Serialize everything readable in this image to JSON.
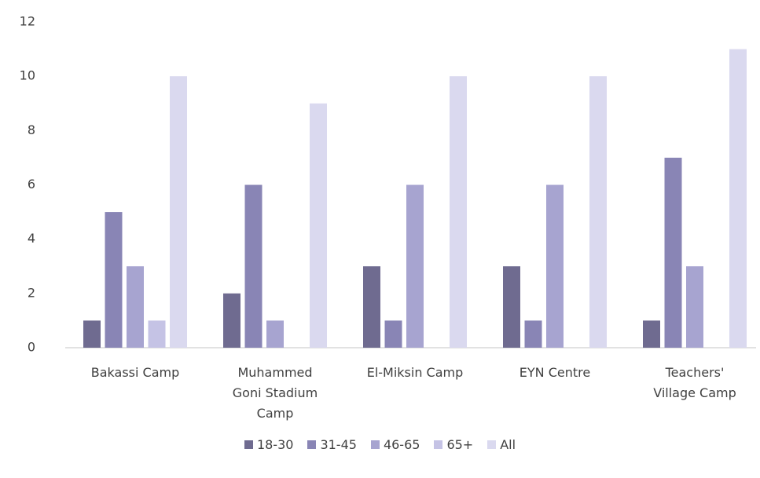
{
  "chart_data": {
    "type": "bar",
    "categories": [
      "Bakassi Camp",
      "Muhammed Goni Stadium Camp",
      "El-Miksin Camp",
      "EYN Centre",
      "Teachers' Village Camp"
    ],
    "series": [
      {
        "name": "18-30",
        "color": "#6f6b90",
        "values": [
          1,
          2,
          3,
          3,
          1
        ]
      },
      {
        "name": "31-45",
        "color": "#8985b5",
        "values": [
          5,
          6,
          1,
          1,
          7
        ]
      },
      {
        "name": "46-65",
        "color": "#a7a4d0",
        "values": [
          3,
          1,
          6,
          6,
          3
        ]
      },
      {
        "name": "65+",
        "color": "#c5c3e5",
        "values": [
          1,
          0,
          0,
          0,
          0
        ]
      },
      {
        "name": "All",
        "color": "#dad9ef",
        "values": [
          10,
          9,
          10,
          10,
          11
        ]
      }
    ],
    "ylim": [
      0,
      12
    ],
    "yticks": [
      0,
      2,
      4,
      6,
      8,
      10,
      12
    ],
    "grid": false,
    "legend": "bottom"
  }
}
